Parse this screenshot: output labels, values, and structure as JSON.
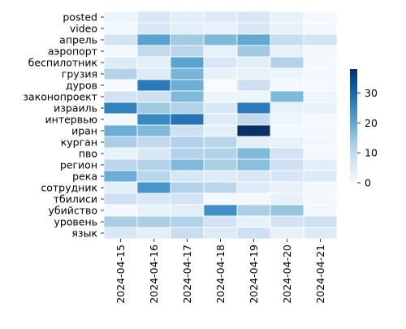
{
  "chart_data": {
    "type": "heatmap",
    "title": "",
    "xlabel": "",
    "ylabel": "",
    "rows": [
      "posted",
      "video",
      "апрель",
      "аэропорт",
      "беспилотник",
      "грузия",
      "дуров",
      "законопроект",
      "израиль",
      "интервью",
      "иран",
      "курган",
      "пво",
      "регион",
      "река",
      "сотрудник",
      "тбилиси",
      "убийство",
      "уровень",
      "язык"
    ],
    "columns": [
      "2024-04-15",
      "2024-04-16",
      "2024-04-17",
      "2024-04-18",
      "2024-04-19",
      "2024-04-20",
      "2024-04-21"
    ],
    "values": [
      [
        2,
        6,
        4,
        5,
        6,
        3,
        1
      ],
      [
        1,
        6,
        4,
        3,
        6,
        3,
        1
      ],
      [
        7,
        21,
        14,
        17,
        20,
        9,
        7
      ],
      [
        1,
        10,
        11,
        3,
        14,
        3,
        1
      ],
      [
        5,
        4,
        21,
        6,
        4,
        12,
        1
      ],
      [
        12,
        5,
        18,
        3,
        3,
        2,
        1
      ],
      [
        0,
        27,
        19,
        0,
        8,
        1,
        1
      ],
      [
        7,
        8,
        17,
        2,
        2,
        17,
        2
      ],
      [
        26,
        14,
        12,
        6,
        27,
        3,
        3
      ],
      [
        1,
        25,
        28,
        5,
        10,
        2,
        1
      ],
      [
        19,
        17,
        8,
        4,
        38,
        1,
        1
      ],
      [
        13,
        10,
        12,
        11,
        4,
        3,
        1
      ],
      [
        3,
        6,
        12,
        12,
        17,
        7,
        1
      ],
      [
        11,
        12,
        17,
        13,
        16,
        8,
        4
      ],
      [
        19,
        11,
        6,
        5,
        6,
        6,
        5
      ],
      [
        4,
        23,
        12,
        11,
        5,
        3,
        1
      ],
      [
        8,
        6,
        7,
        1,
        1,
        3,
        1
      ],
      [
        1,
        3,
        4,
        24,
        13,
        15,
        1
      ],
      [
        13,
        13,
        12,
        7,
        3,
        7,
        8
      ],
      [
        6,
        4,
        9,
        5,
        8,
        3,
        5
      ]
    ],
    "vmin": 0,
    "vmax": 38,
    "colormap": "Blues",
    "colorbar": {
      "ticks": [
        0,
        10,
        20,
        30
      ]
    },
    "cell_border_color": "#ffffff"
  }
}
